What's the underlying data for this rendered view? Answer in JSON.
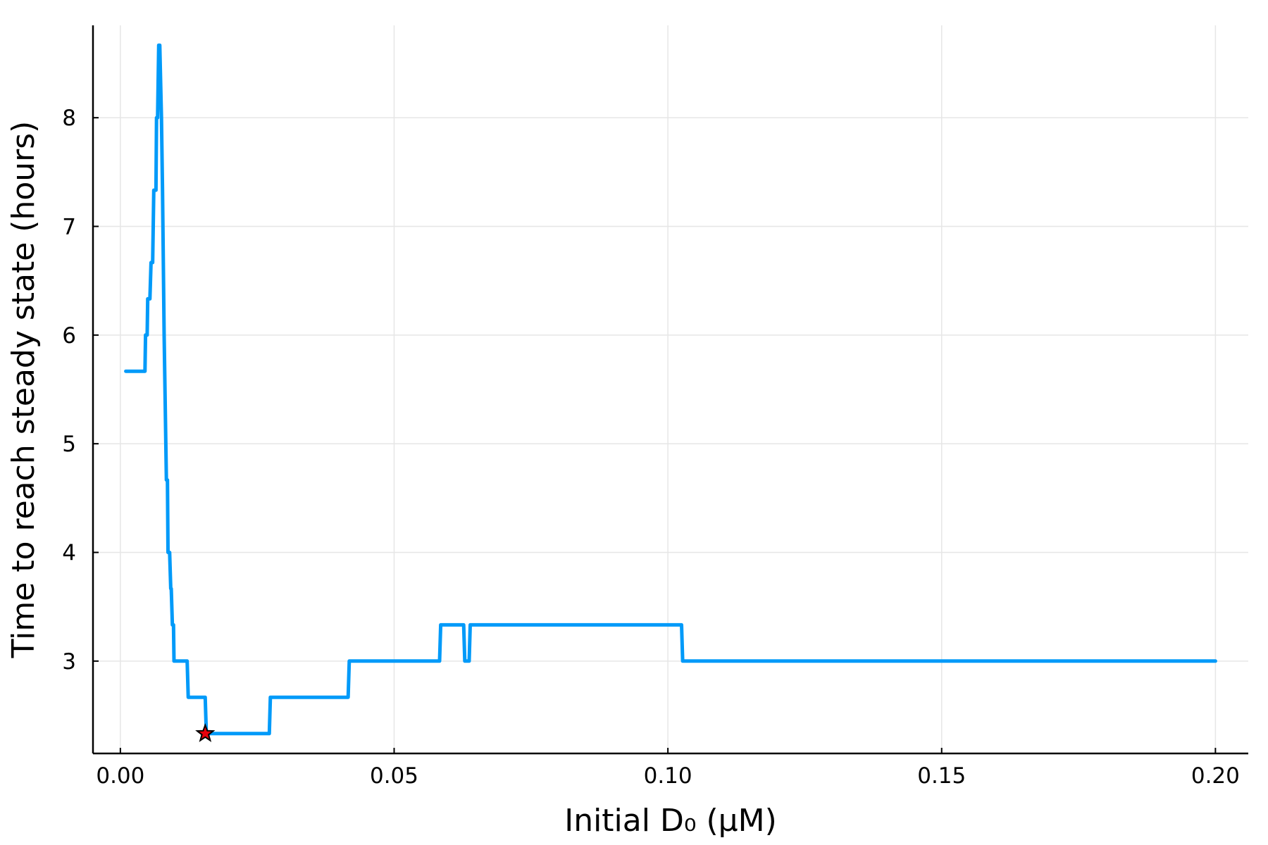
{
  "chart_data": {
    "type": "line",
    "title": "",
    "xlabel": "Initial D₀ (μM)",
    "ylabel": "Time to reach steady state (hours)",
    "xlim": [
      -0.005,
      0.206
    ],
    "ylim": [
      2.15,
      8.85
    ],
    "xticks": [
      0.0,
      0.05,
      0.1,
      0.15,
      0.2
    ],
    "xtick_labels": [
      "0.00",
      "0.05",
      "0.10",
      "0.15",
      "0.20"
    ],
    "yticks": [
      3,
      4,
      5,
      6,
      7,
      8
    ],
    "ytick_labels": [
      "3",
      "4",
      "5",
      "6",
      "7",
      "8"
    ],
    "grid": true,
    "legend": "none",
    "series": [
      {
        "color": "#009af9",
        "x": [
          0.001,
          0.0045,
          0.0046,
          0.0049,
          0.005,
          0.0054,
          0.0056,
          0.0059,
          0.0061,
          0.0065,
          0.0066,
          0.0068,
          0.007,
          0.0072,
          0.0075,
          0.0077,
          0.008,
          0.0081,
          0.0083,
          0.0084,
          0.0086,
          0.0087,
          0.009,
          0.0092,
          0.0093,
          0.0095,
          0.0097,
          0.0098,
          0.01,
          0.0102,
          0.0104,
          0.0106,
          0.0108,
          0.011,
          0.0112,
          0.0122,
          0.0124,
          0.0155,
          0.0157,
          0.0272,
          0.0274,
          0.0416,
          0.0418,
          0.0583,
          0.0585,
          0.0627,
          0.0629,
          0.0637,
          0.0639,
          0.1025,
          0.1027,
          0.2
        ],
        "y": [
          5.667,
          5.667,
          6.0,
          6.0,
          6.333,
          6.333,
          6.667,
          6.667,
          7.333,
          7.333,
          8.0,
          8.0,
          8.667,
          8.667,
          8.0,
          7.333,
          6.0,
          5.667,
          5.0,
          4.667,
          4.667,
          4.0,
          4.0,
          3.667,
          3.667,
          3.333,
          3.333,
          3.0,
          3.0,
          3.0,
          3.0,
          3.0,
          3.0,
          3.0,
          3.0,
          3.0,
          2.667,
          2.667,
          2.333,
          2.333,
          2.667,
          2.667,
          3.0,
          3.0,
          3.333,
          3.333,
          3.0,
          3.0,
          3.333,
          3.333,
          3.0,
          3.0
        ]
      }
    ],
    "marker": {
      "x": 0.0155,
      "y": 2.333,
      "shape": "star",
      "color": "#e8000b"
    }
  }
}
